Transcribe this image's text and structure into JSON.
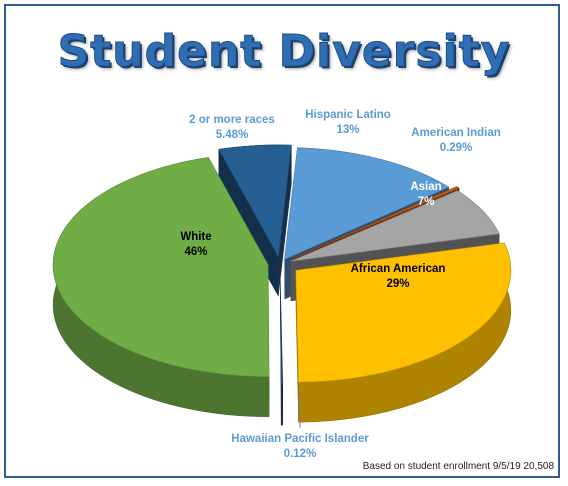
{
  "page": {
    "title": "Student Diversity",
    "footnote": "Based on student enrollment 9/5/19 20,508"
  },
  "chart_data": {
    "type": "pie",
    "title": "Student Diversity",
    "labels": [
      "Hispanic Latino",
      "American Indian",
      "Asian",
      "African American",
      "Hawaiian Pacific Islander",
      "White",
      "2 or more races"
    ],
    "values": [
      13,
      0.29,
      7,
      29,
      0.12,
      46,
      5.48
    ],
    "value_labels": [
      "13%",
      "0.29%",
      "7%",
      "29%",
      "0.12%",
      "46%",
      "5.48%"
    ],
    "colors": [
      "#5b9bd5",
      "#c55a11",
      "#a5a5a5",
      "#ffc000",
      "#264478",
      "#70ad47",
      "#255e91"
    ],
    "legend": "none",
    "style": "3d-exploded"
  }
}
